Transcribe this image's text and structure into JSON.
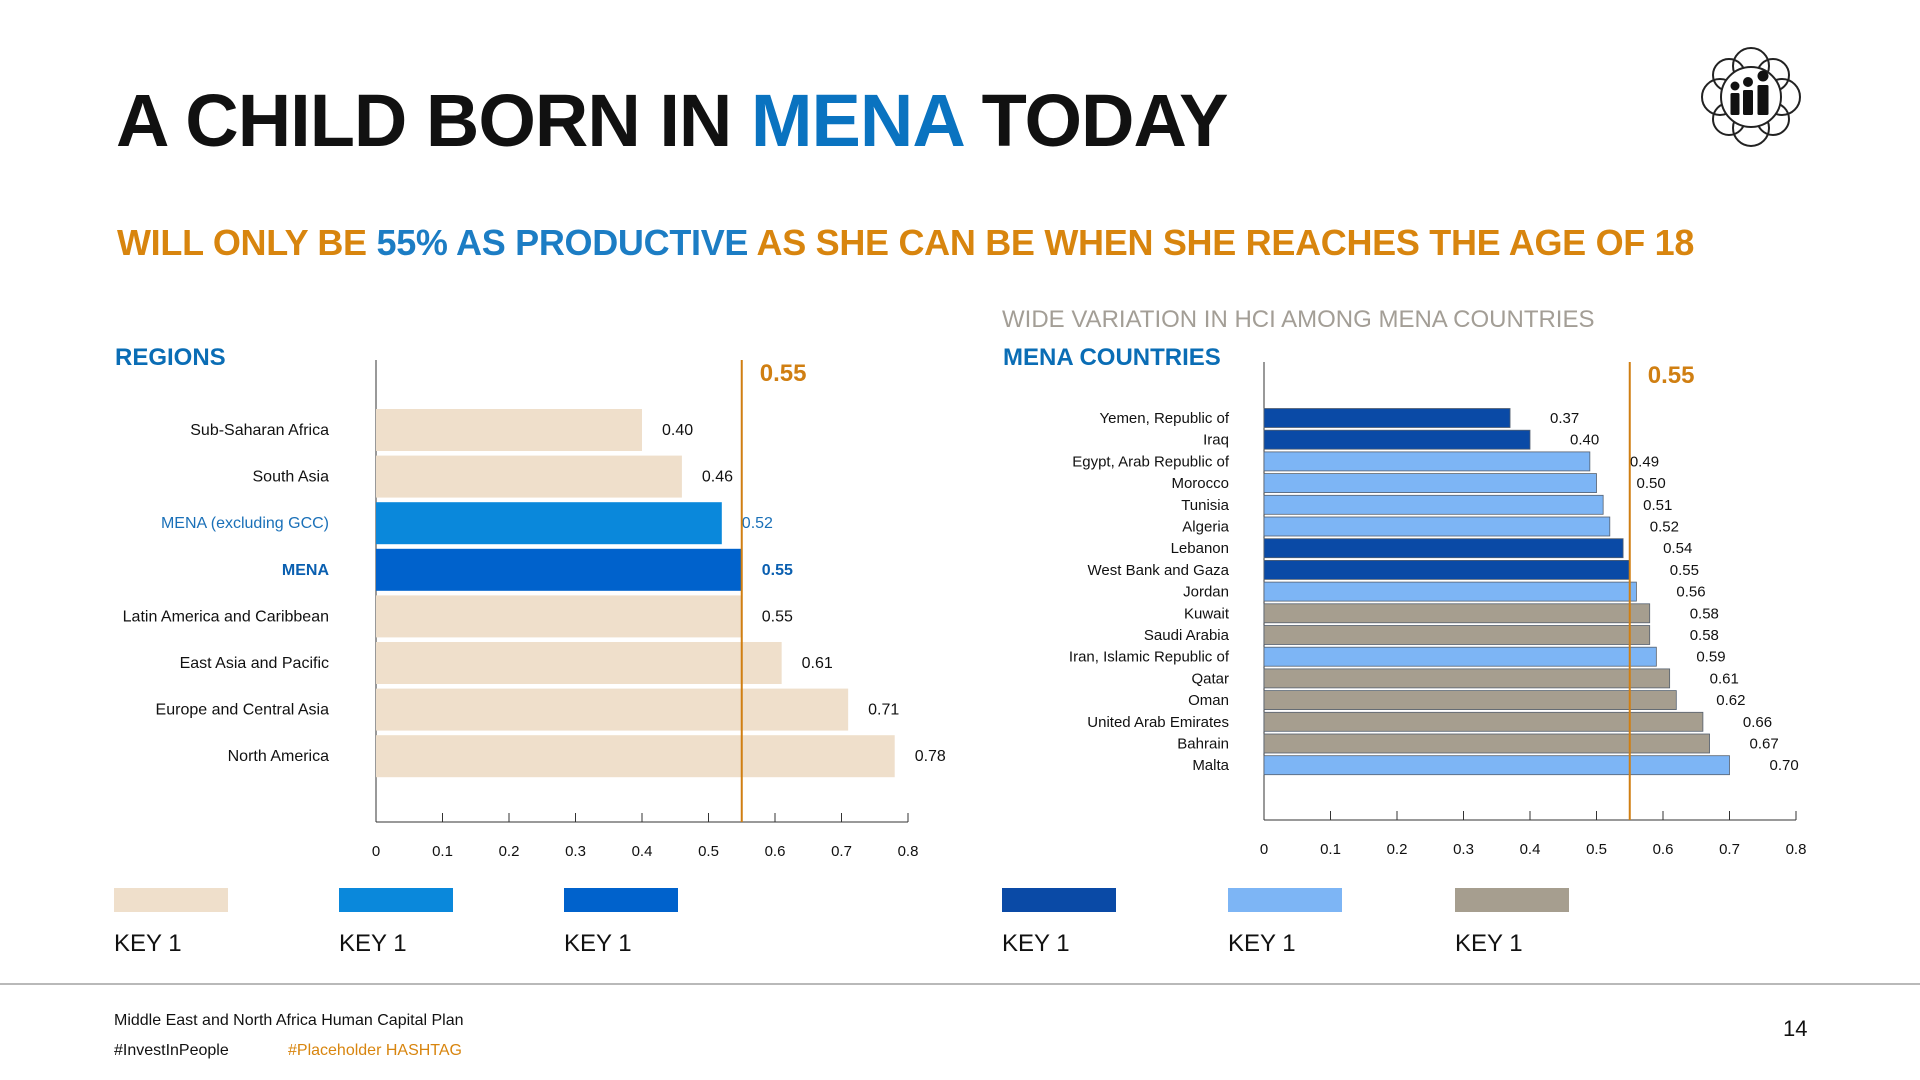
{
  "slide": {
    "title_part1": "A CHILD BORN IN ",
    "title_highlight": "MENA",
    "title_part2": " TODAY",
    "subtitle_part1": "WILL ONLY BE ",
    "subtitle_highlight": "55% AS PRODUCTIVE",
    "subtitle_part2": " AS SHE CAN BE WHEN SHE REACHES THE AGE OF 18",
    "right_heading": "WIDE VARIATION IN HCI AMONG MENA COUNTRIES",
    "logo_icon": "human-capital-logo-icon"
  },
  "chart_data": [
    {
      "type": "bar",
      "orientation": "horizontal",
      "section_label": "REGIONS",
      "reference_line": {
        "value": 0.55,
        "label": "0.55"
      },
      "xlim": [
        0,
        0.8
      ],
      "xticks": [
        "0",
        "0.1",
        "0.2",
        "0.3",
        "0.4",
        "0.5",
        "0.6",
        "0.7",
        "0.8"
      ],
      "categories": [
        "Sub-Saharan Africa",
        "South Asia",
        "MENA (excluding GCC)",
        "MENA",
        "Latin America and Caribbean",
        "East Asia and Pacific",
        "Europe and Central Asia",
        "North America"
      ],
      "values": [
        0.4,
        0.46,
        0.52,
        0.55,
        0.55,
        0.61,
        0.71,
        0.78
      ],
      "value_labels": [
        "0.40",
        "0.46",
        "0.52",
        "0.55",
        "0.55",
        "0.61",
        "0.71",
        "0.78"
      ],
      "bar_colors": [
        "#efdfcb",
        "#efdfcb",
        "#0a88db",
        "#0062cc",
        "#efdfcb",
        "#efdfcb",
        "#efdfcb",
        "#efdfcb"
      ],
      "label_colors": [
        "#111111",
        "#111111",
        "#1a70b8",
        "#0a5fb0",
        "#111111",
        "#111111",
        "#111111",
        "#111111"
      ],
      "label_bold": [
        false,
        false,
        false,
        true,
        false,
        false,
        false,
        false
      ],
      "legend": [
        {
          "label": "KEY 1",
          "color": "#efdfcb"
        },
        {
          "label": "KEY 1",
          "color": "#0a88db"
        },
        {
          "label": "KEY 1",
          "color": "#0062cc"
        }
      ]
    },
    {
      "type": "bar",
      "orientation": "horizontal",
      "section_label": "MENA COUNTRIES",
      "reference_line": {
        "value": 0.55,
        "label": "0.55"
      },
      "xlim": [
        0,
        0.8
      ],
      "xticks": [
        "0",
        "0.1",
        "0.2",
        "0.3",
        "0.4",
        "0.5",
        "0.6",
        "0.7",
        "0.8"
      ],
      "categories": [
        "Yemen, Republic of",
        "Iraq",
        "Egypt, Arab Republic of",
        "Morocco",
        "Tunisia",
        "Algeria",
        "Lebanon",
        "West Bank and Gaza",
        "Jordan",
        "Kuwait",
        "Saudi Arabia",
        "Iran, Islamic Republic of",
        "Qatar",
        "Oman",
        "United Arab Emirates",
        "Bahrain",
        "Malta"
      ],
      "values": [
        0.37,
        0.4,
        0.49,
        0.5,
        0.51,
        0.52,
        0.54,
        0.55,
        0.56,
        0.58,
        0.58,
        0.59,
        0.61,
        0.62,
        0.66,
        0.67,
        0.7
      ],
      "value_labels": [
        "0.37",
        "0.40",
        "0.49",
        "0.50",
        "0.51",
        "0.52",
        "0.54",
        "0.55",
        "0.56",
        "0.58",
        "0.58",
        "0.59",
        "0.61",
        "0.62",
        "0.66",
        "0.67",
        "0.70"
      ],
      "bar_colors": [
        "#0a4aa6",
        "#0a4aa6",
        "#7db5f5",
        "#7db5f5",
        "#7db5f5",
        "#7db5f5",
        "#0a4aa6",
        "#0a4aa6",
        "#7db5f5",
        "#a69e8f",
        "#a69e8f",
        "#7db5f5",
        "#a69e8f",
        "#a69e8f",
        "#a69e8f",
        "#a69e8f",
        "#7db5f5"
      ],
      "legend": [
        {
          "label": "KEY 1",
          "color": "#0a4aa6"
        },
        {
          "label": "KEY 1",
          "color": "#7db5f5"
        },
        {
          "label": "KEY 1",
          "color": "#a69e8f"
        }
      ]
    }
  ],
  "footer": {
    "plan_name": "Middle East and North Africa Human Capital Plan",
    "hashtag": "#InvestInPeople",
    "placeholder_hashtag": "#Placeholder HASHTAG",
    "page_number": "14"
  },
  "colors": {
    "reference_line": "#d07f12",
    "axis": "#333333",
    "title_highlight": "#0a73c0",
    "subtitle_orange": "#d8850e",
    "section_blue": "#0a6db5"
  }
}
